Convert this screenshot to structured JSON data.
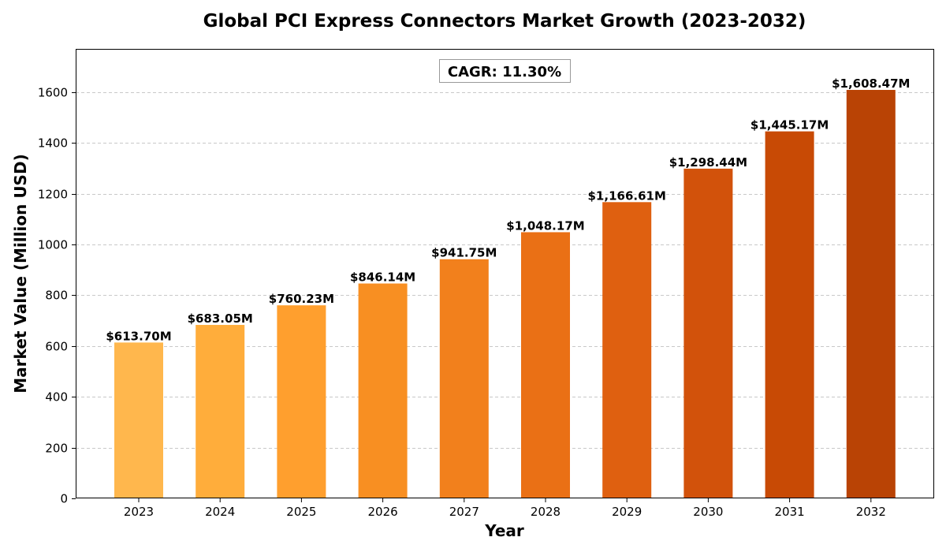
{
  "chart_data": {
    "type": "bar",
    "title": "Global PCI Express Connectors Market Growth (2023-2032)",
    "xlabel": "Year",
    "ylabel": "Market Value (Million USD)",
    "categories": [
      "2023",
      "2024",
      "2025",
      "2026",
      "2027",
      "2028",
      "2029",
      "2030",
      "2031",
      "2032"
    ],
    "values": [
      613.7,
      683.05,
      760.23,
      846.14,
      941.75,
      1048.17,
      1166.61,
      1298.44,
      1445.17,
      1608.47
    ],
    "data_labels": [
      "$613.70M",
      "$683.05M",
      "$760.23M",
      "$846.14M",
      "$941.75M",
      "$1,048.17M",
      "$1,166.61M",
      "$1,298.44M",
      "$1,445.17M",
      "$1,608.47M"
    ],
    "bar_colors": [
      "#ffb74d",
      "#ffad3b",
      "#ff9f2e",
      "#f88f22",
      "#f2801c",
      "#ea7015",
      "#df6010",
      "#d2520b",
      "#c84a05",
      "#b94305"
    ],
    "ylim": [
      0,
      1770
    ],
    "yticks": [
      0,
      200,
      400,
      600,
      800,
      1000,
      1200,
      1400,
      1600
    ],
    "grid": true,
    "annotation": "CAGR: 11.30%"
  }
}
